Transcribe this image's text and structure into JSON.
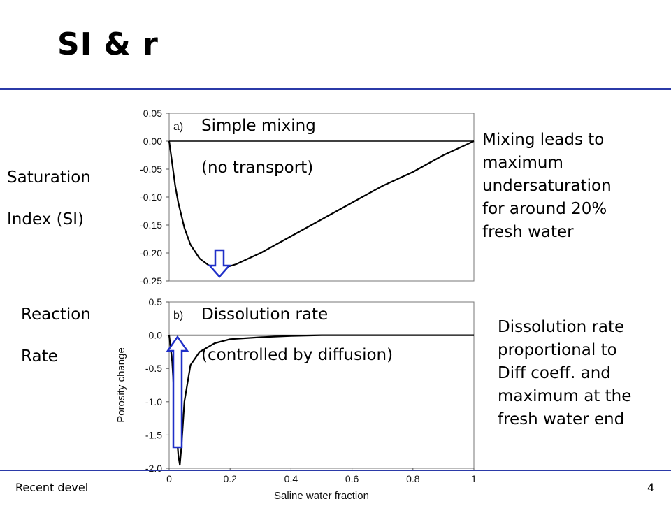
{
  "title": "SI & r",
  "footer": {
    "left": "Recent devel",
    "page": "4"
  },
  "labels": {
    "si_line1": "Saturation",
    "si_line2": "Index (SI)",
    "rate_line1": "Reaction",
    "rate_line2": "Rate",
    "top_plot_line1": "Simple mixing",
    "top_plot_line2": "(no transport)",
    "bottom_plot_line1": "Dissolution rate",
    "bottom_plot_line2": "(controlled by diffusion)",
    "note_top": [
      "Mixing leads to",
      "maximum",
      "undersaturation",
      "for around 20%",
      "fresh water"
    ],
    "note_bottom": [
      "Dissolution rate",
      "proportional to",
      "Diff coeff. and",
      "maximum at the",
      "fresh water end"
    ]
  },
  "colors": {
    "rule": "#2b3aa8",
    "arrow": "#1f2fc8",
    "line": "#000000"
  },
  "chart_data": [
    {
      "type": "line",
      "panel_label": "a)",
      "xlim": [
        0,
        1
      ],
      "ylim": [
        -0.25,
        0.05
      ],
      "yticks": [
        "0.05",
        "0.00",
        "-0.05",
        "-0.10",
        "-0.15",
        "-0.20",
        "-0.25"
      ],
      "ytick_values": [
        0.05,
        0.0,
        -0.05,
        -0.1,
        -0.15,
        -0.2,
        -0.25
      ],
      "x": [
        0,
        0.01,
        0.02,
        0.03,
        0.05,
        0.07,
        0.1,
        0.13,
        0.16,
        0.19,
        0.22,
        0.3,
        0.4,
        0.5,
        0.6,
        0.7,
        0.8,
        0.9,
        1.0
      ],
      "y": [
        0.0,
        -0.04,
        -0.08,
        -0.11,
        -0.155,
        -0.185,
        -0.21,
        -0.222,
        -0.226,
        -0.225,
        -0.22,
        -0.2,
        -0.17,
        -0.14,
        -0.11,
        -0.08,
        -0.055,
        -0.025,
        0.0
      ],
      "grid": false
    },
    {
      "type": "line",
      "panel_label": "b)",
      "xlim": [
        0,
        1
      ],
      "ylim": [
        -2.0,
        0.5
      ],
      "ylabel": "Porosity change",
      "xlabel": "Saline water fraction",
      "yticks": [
        "0.5",
        "0.0",
        "-0.5",
        "-1.0",
        "-1.5",
        "-2.0"
      ],
      "ytick_values": [
        0.5,
        0.0,
        -0.5,
        -1.0,
        -1.5,
        -2.0
      ],
      "xticks": [
        "0",
        "0.2",
        "0.4",
        "0.6",
        "0.8",
        "1"
      ],
      "xtick_values": [
        0,
        0.2,
        0.4,
        0.6,
        0.8,
        1.0
      ],
      "x": [
        0,
        0.01,
        0.02,
        0.03,
        0.035,
        0.04,
        0.05,
        0.07,
        0.1,
        0.15,
        0.2,
        0.3,
        0.4,
        0.5,
        0.6,
        0.8,
        1.0
      ],
      "y": [
        0.0,
        -0.4,
        -1.2,
        -1.8,
        -1.95,
        -1.7,
        -1.0,
        -0.45,
        -0.25,
        -0.12,
        -0.06,
        -0.03,
        -0.01,
        0.0,
        0.0,
        0.0,
        0.0
      ],
      "grid": false
    }
  ]
}
